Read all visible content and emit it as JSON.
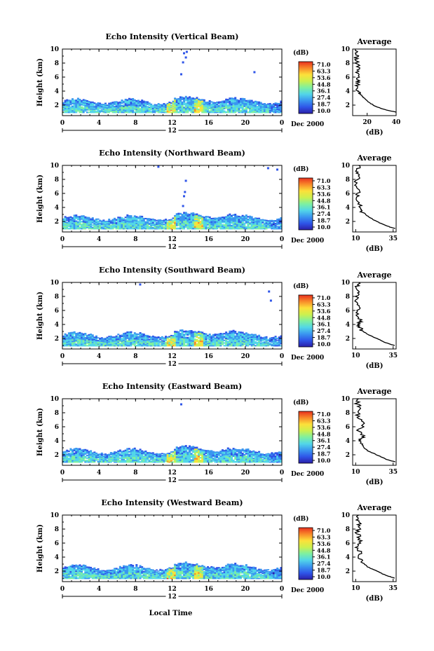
{
  "chart_data": [
    {
      "type": "heatmap",
      "title": "Echo Intensity (Vertical Beam)",
      "ylabel": "Height (km)",
      "yticks": [
        "2",
        "4",
        "6",
        "8",
        "10"
      ],
      "ylim": [
        0.5,
        10
      ],
      "xticks": [
        "0",
        "4",
        "8",
        "12",
        "16",
        "20",
        "0"
      ],
      "xlim": [
        0,
        24
      ],
      "date_center": "12",
      "date_label": "Dec 2000",
      "colorbar_unit": "(dB)",
      "colorbar_ticks": [
        "71.0",
        "63.3",
        "53.6",
        "44.8",
        "36.1",
        "27.4",
        "18.7",
        "10.0"
      ],
      "average": {
        "title": "Average",
        "xlabel": "(dB)",
        "xticks": [
          "20",
          "40"
        ],
        "xlim": [
          10,
          40
        ],
        "profile": [
          [
            40,
            1.0
          ],
          [
            33,
            1.3
          ],
          [
            26,
            1.8
          ],
          [
            21,
            2.4
          ],
          [
            18,
            3.0
          ],
          [
            15,
            3.6
          ],
          [
            14,
            4.0
          ],
          [
            13,
            4.8
          ],
          [
            14,
            5.5
          ],
          [
            13,
            6.5
          ],
          [
            14,
            7.5
          ],
          [
            12,
            8.5
          ],
          [
            13,
            9.3
          ],
          [
            12,
            10.0
          ]
        ]
      },
      "sparse_echoes": [
        [
          13.3,
          9.4
        ],
        [
          13.6,
          9.6
        ],
        [
          13.5,
          8.8
        ],
        [
          13.2,
          8.1
        ],
        [
          13.0,
          6.4
        ],
        [
          21,
          6.7
        ]
      ]
    },
    {
      "type": "heatmap",
      "title": "Echo Intensity (Northward Beam)",
      "ylabel": "Height (km)",
      "yticks": [
        "2",
        "4",
        "6",
        "8",
        "10"
      ],
      "ylim": [
        0.5,
        10
      ],
      "xticks": [
        "0",
        "4",
        "8",
        "12",
        "16",
        "20",
        "0"
      ],
      "xlim": [
        0,
        24
      ],
      "date_center": "12",
      "date_label": "Dec 2000",
      "colorbar_unit": "(dB)",
      "colorbar_ticks": [
        "71.0",
        "63.3",
        "53.6",
        "44.8",
        "36.1",
        "27.4",
        "18.7",
        "10.0"
      ],
      "average": {
        "title": "Average",
        "xlabel": "(dB)",
        "xticks": [
          "10",
          "35"
        ],
        "xlim": [
          8,
          37
        ],
        "profile": [
          [
            36,
            1.0
          ],
          [
            30,
            1.4
          ],
          [
            24,
            2.0
          ],
          [
            19,
            2.6
          ],
          [
            15,
            3.3
          ],
          [
            12,
            3.8
          ],
          [
            13,
            4.5
          ],
          [
            11,
            5.5
          ],
          [
            12,
            6.5
          ],
          [
            10,
            7.5
          ],
          [
            12,
            8.5
          ],
          [
            11,
            9.3
          ],
          [
            12,
            10.0
          ]
        ]
      },
      "sparse_echoes": [
        [
          10.5,
          9.8
        ],
        [
          13.5,
          7.8
        ],
        [
          13.4,
          6.2
        ],
        [
          13.3,
          5.6
        ],
        [
          13.2,
          4.2
        ],
        [
          22.5,
          9.6
        ],
        [
          23.5,
          9.4
        ]
      ]
    },
    {
      "type": "heatmap",
      "title": "Echo Intensity (Southward Beam)",
      "ylabel": "Height (km)",
      "yticks": [
        "2",
        "4",
        "6",
        "8",
        "10"
      ],
      "ylim": [
        0.5,
        10
      ],
      "xticks": [
        "0",
        "4",
        "8",
        "12",
        "16",
        "20",
        "0"
      ],
      "xlim": [
        0,
        24
      ],
      "date_center": "12",
      "date_label": "Dec 2000",
      "colorbar_unit": "(dB)",
      "colorbar_ticks": [
        "71.0",
        "63.3",
        "53.6",
        "44.8",
        "36.1",
        "27.4",
        "18.7",
        "10.0"
      ],
      "average": {
        "title": "Average",
        "xlabel": "(dB)",
        "xticks": [
          "10",
          "35"
        ],
        "xlim": [
          8,
          37
        ],
        "profile": [
          [
            36,
            1.0
          ],
          [
            30,
            1.4
          ],
          [
            24,
            2.0
          ],
          [
            18,
            2.6
          ],
          [
            14,
            3.2
          ],
          [
            12,
            3.8
          ],
          [
            13,
            4.5
          ],
          [
            11,
            5.5
          ],
          [
            12,
            6.5
          ],
          [
            10,
            7.5
          ],
          [
            12,
            8.5
          ],
          [
            11,
            9.3
          ],
          [
            12,
            10.0
          ]
        ]
      },
      "sparse_echoes": [
        [
          8.5,
          9.7
        ],
        [
          22.6,
          8.7
        ],
        [
          22.8,
          7.4
        ]
      ]
    },
    {
      "type": "heatmap",
      "title": "Echo Intensity (Eastward Beam)",
      "ylabel": "Height (km)",
      "yticks": [
        "2",
        "4",
        "6",
        "8",
        "10"
      ],
      "ylim": [
        0.5,
        10
      ],
      "xticks": [
        "0",
        "4",
        "8",
        "12",
        "16",
        "20",
        "0"
      ],
      "xlim": [
        0,
        24
      ],
      "date_center": "12",
      "date_label": "Dec 2000",
      "colorbar_unit": "(dB)",
      "colorbar_ticks": [
        "71.0",
        "63.3",
        "53.6",
        "44.8",
        "36.1",
        "27.4",
        "18.7",
        "10.0"
      ],
      "average": {
        "title": "Average",
        "xlabel": "(dB)",
        "xticks": [
          "10",
          "35"
        ],
        "xlim": [
          8,
          37
        ],
        "profile": [
          [
            36,
            1.0
          ],
          [
            30,
            1.4
          ],
          [
            24,
            2.0
          ],
          [
            18,
            2.6
          ],
          [
            14,
            3.3
          ],
          [
            13,
            4.0
          ],
          [
            15,
            4.6
          ],
          [
            12,
            5.5
          ],
          [
            16,
            6.5
          ],
          [
            11,
            7.5
          ],
          [
            14,
            8.5
          ],
          [
            11,
            9.3
          ],
          [
            12,
            10.0
          ]
        ]
      },
      "sparse_echoes": [
        [
          13.0,
          9.2
        ]
      ]
    },
    {
      "type": "heatmap",
      "title": "Echo Intensity (Westward Beam)",
      "ylabel": "Height (km)",
      "yticks": [
        "2",
        "4",
        "6",
        "8",
        "10"
      ],
      "ylim": [
        0.5,
        10
      ],
      "xticks": [
        "0",
        "4",
        "8",
        "12",
        "16",
        "20",
        "0"
      ],
      "xlim": [
        0,
        24
      ],
      "date_center": "12",
      "date_label": "Dec 2000",
      "colorbar_unit": "(dB)",
      "colorbar_ticks": [
        "71.0",
        "63.3",
        "53.6",
        "44.8",
        "36.1",
        "27.4",
        "18.7",
        "10.0"
      ],
      "average": {
        "title": "Average",
        "xlabel": "(dB)",
        "xticks": [
          "10",
          "35"
        ],
        "xlim": [
          8,
          37
        ],
        "profile": [
          [
            36,
            1.0
          ],
          [
            30,
            1.4
          ],
          [
            24,
            2.0
          ],
          [
            18,
            2.6
          ],
          [
            14,
            3.3
          ],
          [
            12,
            4.0
          ],
          [
            13,
            4.8
          ],
          [
            11,
            5.5
          ],
          [
            13,
            6.5
          ],
          [
            11,
            7.5
          ],
          [
            13,
            8.5
          ],
          [
            11,
            9.3
          ],
          [
            12,
            10.0
          ]
        ]
      },
      "sparse_echoes": []
    }
  ],
  "xaxis_label": "Local Time",
  "colorscale": [
    "#2b1fa8",
    "#2f55e8",
    "#3a96f0",
    "#52d6e8",
    "#7ef0a0",
    "#cdf04e",
    "#fce03a",
    "#f88a2a",
    "#e8301e"
  ]
}
